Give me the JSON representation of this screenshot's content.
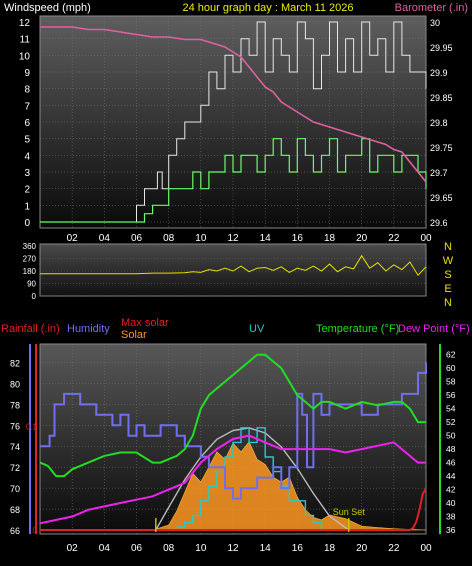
{
  "header": {
    "left_title": "Windspeed (mph)",
    "center_title": "24 hour graph day : March 11 2026",
    "right_title": "Barometer (.in)"
  },
  "colors": {
    "bg": "#000000",
    "plot_grad_top": "#5a5a5a",
    "plot_grad_bottom": "#0c0c0c",
    "wind_gust": "#e8e8e8",
    "wind_avg": "#66ff66",
    "barometer": "#e060a0",
    "direction": "#e8e000",
    "temperature": "#22dd22",
    "dew_point": "#ee22ee",
    "humidity": "#7070ee",
    "uv": "#22cccc",
    "solar": "#ff9922",
    "max_solar": "#bbbbbb",
    "rainfall": "#dd2222",
    "sunset": "#cccc00",
    "axis_text": "#ffffff"
  },
  "chart_data": [
    {
      "id": "wind",
      "type": "line",
      "title": "24 hour graph day : March 11 2026",
      "ylabel": "Windspeed (mph)",
      "y2label": "Barometer (.in)",
      "x_ticks": [
        "02",
        "04",
        "06",
        "08",
        "10",
        "12",
        "14",
        "16",
        "18",
        "20",
        "22",
        "00"
      ],
      "x_range": [
        0,
        24
      ],
      "ylim": [
        0,
        12
      ],
      "y_ticks": [
        0,
        1,
        2,
        3,
        4,
        5,
        6,
        7,
        8,
        9,
        10,
        11,
        12
      ],
      "y2lim": [
        29.6,
        30.0
      ],
      "y2_ticks": [
        "29.6",
        "29.65",
        "29.7",
        "29.75",
        "29.8",
        "29.85",
        "29.9",
        "29.95",
        "30"
      ],
      "series": [
        {
          "name": "Windspeed",
          "key": "gust",
          "x": [
            0,
            5.0,
            5.5,
            6.0,
            6.5,
            7.0,
            7.3,
            7.6,
            8.0,
            8.5,
            9.0,
            9.5,
            10.0,
            10.5,
            11.0,
            11.5,
            12.0,
            12.5,
            13.0,
            13.5,
            14.0,
            14.5,
            15.0,
            15.5,
            16.0,
            16.5,
            17.0,
            17.5,
            18.0,
            18.5,
            19.0,
            19.5,
            20.0,
            20.5,
            21.0,
            21.5,
            22.0,
            22.5,
            23.0,
            23.5,
            24.0
          ],
          "values": [
            0,
            0,
            0,
            1,
            2,
            2,
            3,
            2,
            4,
            5,
            6,
            6,
            7,
            9,
            8,
            10,
            9,
            11,
            10,
            12,
            9,
            11,
            10,
            9,
            12,
            11,
            8,
            10,
            12,
            9,
            11,
            9,
            12,
            10,
            11,
            9,
            12,
            10,
            9,
            9,
            8
          ]
        },
        {
          "name": "Windspeed Avg",
          "key": "avg",
          "x": [
            0,
            5.0,
            6.0,
            6.5,
            7.0,
            7.5,
            8.0,
            8.5,
            9.0,
            9.5,
            10.0,
            10.5,
            11.0,
            11.5,
            12.0,
            12.5,
            13.0,
            13.5,
            14.0,
            14.5,
            15.0,
            15.5,
            16.0,
            16.5,
            17.0,
            17.5,
            18.0,
            18.5,
            19.0,
            19.5,
            20.0,
            20.5,
            21.0,
            21.5,
            22.0,
            22.5,
            23.0,
            23.5,
            24.0
          ],
          "values": [
            0,
            0,
            0,
            0.5,
            1,
            1,
            2,
            2,
            2,
            3,
            2,
            3,
            3,
            4,
            3,
            4,
            4,
            3,
            4,
            5,
            4,
            3,
            5,
            4,
            3,
            4,
            5,
            3,
            4,
            4,
            5,
            3,
            4,
            4,
            3,
            4,
            4,
            3,
            2
          ]
        },
        {
          "name": "Barometer",
          "key": "baro",
          "axis": "y2",
          "x": [
            0,
            1,
            2,
            3,
            4,
            5,
            6,
            7,
            8,
            9,
            10,
            10.5,
            11,
            11.5,
            12,
            12.5,
            13,
            13.5,
            14,
            14.5,
            15,
            15.5,
            16,
            16.5,
            17,
            17.5,
            18,
            18.5,
            19,
            19.5,
            20,
            20.5,
            21,
            21.5,
            22,
            22.5,
            23,
            23.5,
            24
          ],
          "values": [
            29.99,
            29.99,
            29.99,
            29.985,
            29.985,
            29.98,
            29.975,
            29.97,
            29.97,
            29.965,
            29.965,
            29.96,
            29.955,
            29.95,
            29.94,
            29.93,
            29.91,
            29.89,
            29.87,
            29.86,
            29.84,
            29.83,
            29.82,
            29.81,
            29.8,
            29.795,
            29.79,
            29.785,
            29.78,
            29.775,
            29.77,
            29.765,
            29.76,
            29.755,
            29.745,
            29.74,
            29.72,
            29.7,
            29.68
          ]
        }
      ]
    },
    {
      "id": "direction",
      "type": "line",
      "ylim": [
        0,
        360
      ],
      "y_ticks": [
        0,
        90,
        180,
        270,
        360
      ],
      "compass_labels": [
        "N",
        "W",
        "S",
        "E",
        "N"
      ],
      "series": [
        {
          "name": "Wind Direction",
          "key": "dir",
          "x": [
            0,
            2,
            4,
            6,
            7,
            8,
            9,
            9.5,
            10,
            10.5,
            11,
            11.5,
            12,
            12.5,
            13,
            13.5,
            14,
            14.5,
            15,
            15.5,
            16,
            16.5,
            17,
            17.5,
            18,
            18.5,
            19,
            19.5,
            20,
            20.5,
            21,
            21.5,
            22,
            22.5,
            23,
            23.5,
            24
          ],
          "values": [
            160,
            160,
            160,
            160,
            165,
            165,
            168,
            175,
            170,
            190,
            180,
            200,
            180,
            215,
            175,
            200,
            205,
            185,
            210,
            170,
            200,
            185,
            215,
            180,
            230,
            175,
            210,
            195,
            290,
            200,
            240,
            180,
            225,
            190,
            245,
            150,
            210
          ]
        }
      ]
    },
    {
      "id": "weather",
      "type": "line",
      "x_ticks": [
        "02",
        "04",
        "06",
        "08",
        "10",
        "12",
        "14",
        "16",
        "18",
        "20",
        "22",
        "00"
      ],
      "x_range": [
        0,
        24
      ],
      "humidity_axis": {
        "label": "Humidity",
        "ticks": [
          66,
          68,
          70,
          72,
          74,
          76,
          78,
          80,
          82
        ],
        "lim": [
          66,
          83
        ]
      },
      "temp_axis": {
        "label": "Temperature (°F)",
        "ticks": [
          36,
          38,
          40,
          42,
          44,
          46,
          48,
          50,
          52,
          54,
          56,
          58,
          60,
          62
        ],
        "lim": [
          36,
          63
        ]
      },
      "rain_axis": {
        "label": "Rainfall (.in)",
        "ticks": [
          "0",
          "0.1"
        ],
        "lim": [
          0,
          0.18
        ]
      },
      "labels": {
        "rainfall": "Rainfall (.in)",
        "humidity": "Humidity",
        "max_solar": "Max solar",
        "solar": "Solar",
        "uv": "UV",
        "temperature": "Temperature (°F)",
        "dew_point": "Dew Point (°F)",
        "sunset": "Sun Set"
      },
      "series": [
        {
          "name": "Temperature (°F)",
          "key": "temp",
          "x": [
            0,
            0.5,
            1,
            1.5,
            2,
            3,
            4,
            5,
            6,
            7,
            7.5,
            8,
            8.5,
            9,
            9.5,
            10,
            10.5,
            11,
            11.5,
            12,
            12.5,
            13,
            13.5,
            14,
            14.5,
            15,
            15.5,
            16,
            16.5,
            17,
            17.5,
            18,
            19,
            20,
            21,
            22,
            22.5,
            23,
            23.5,
            24
          ],
          "values": [
            46,
            45.5,
            44,
            44,
            45,
            46,
            47,
            47.5,
            47.5,
            46,
            46,
            46.5,
            47,
            48,
            50,
            54,
            56,
            57,
            58,
            59,
            60,
            61,
            62,
            62,
            61,
            60,
            58,
            56,
            55,
            54,
            55,
            55,
            54,
            55,
            54.5,
            55,
            55,
            54,
            52,
            52
          ]
        },
        {
          "name": "Dew Point (°F)",
          "key": "dew",
          "x": [
            0,
            1,
            2,
            3,
            4,
            5,
            6,
            7,
            8,
            9,
            10,
            11,
            12,
            13,
            14,
            15,
            16,
            17,
            18,
            19,
            20,
            21,
            22,
            23,
            23.5,
            24
          ],
          "values": [
            37,
            37.5,
            38,
            39,
            39.5,
            40,
            40.5,
            41,
            42,
            43,
            46,
            48,
            49.5,
            50,
            49,
            48,
            48,
            48,
            48,
            47.5,
            48,
            48.5,
            49,
            47,
            46,
            46
          ]
        },
        {
          "name": "Humidity",
          "key": "hum",
          "x": [
            0,
            0.3,
            0.6,
            0.9,
            1.2,
            1.5,
            2.0,
            2.5,
            3.0,
            3.5,
            4.0,
            4.5,
            5.0,
            5.5,
            6.0,
            6.5,
            7.0,
            7.5,
            8.0,
            8.5,
            9.0,
            9.5,
            10.0,
            10.5,
            11.0,
            11.5,
            12.0,
            12.5,
            13.0,
            13.5,
            14.0,
            14.5,
            15.0,
            15.5,
            16.0,
            16.3,
            16.6,
            17.0,
            17.5,
            18.0,
            19.0,
            20.0,
            21.0,
            22.0,
            22.5,
            23.0,
            23.5,
            24.0
          ],
          "values": [
            74,
            74,
            75,
            78,
            78,
            79,
            79,
            78,
            78,
            77,
            77,
            76,
            77,
            75,
            76,
            75,
            75,
            76,
            76,
            75,
            74,
            74,
            73,
            72,
            72,
            70,
            69,
            70,
            70,
            71,
            71,
            72,
            70,
            72,
            79,
            77,
            72,
            79,
            77,
            78,
            78,
            77,
            78,
            78,
            79,
            79,
            81,
            82
          ]
        },
        {
          "name": "UV",
          "key": "uv",
          "x": [
            8.5,
            9,
            9.5,
            10,
            10.5,
            11,
            11.5,
            12,
            12.5,
            13,
            13.5,
            14,
            14.5,
            15,
            15.5,
            16,
            16.5,
            17,
            17.5
          ],
          "values": [
            0.2,
            0.5,
            1,
            2,
            3,
            4,
            5,
            6,
            7,
            6,
            7,
            5,
            4,
            3,
            2,
            2,
            1,
            0.5,
            0
          ],
          "lim": [
            0,
            10
          ]
        },
        {
          "name": "Solar",
          "key": "solar",
          "x": [
            7,
            8,
            8.5,
            9,
            9.5,
            10,
            10.5,
            11,
            11.5,
            12,
            12.5,
            13,
            13.5,
            14,
            14.5,
            15,
            15.5,
            16,
            16.5,
            17,
            17.5,
            18,
            19,
            20,
            21,
            22,
            23,
            24
          ],
          "values": [
            0,
            40,
            150,
            300,
            450,
            380,
            500,
            620,
            560,
            690,
            620,
            700,
            560,
            520,
            420,
            380,
            420,
            260,
            160,
            100,
            80,
            120,
            90,
            30,
            20,
            10,
            5,
            0
          ],
          "lim": [
            0,
            1000
          ]
        },
        {
          "name": "Max solar",
          "key": "maxsolar",
          "x": [
            7.2,
            8,
            9,
            10,
            11,
            12,
            13,
            14,
            15,
            16,
            17,
            18,
            19.2
          ],
          "values": [
            0,
            180,
            400,
            580,
            720,
            790,
            810,
            770,
            660,
            490,
            290,
            110,
            0
          ],
          "lim": [
            0,
            1000
          ]
        },
        {
          "name": "Rainfall (.in)",
          "key": "rain",
          "x": [
            0,
            23,
            23.2,
            23.4,
            23.6,
            23.8,
            24
          ],
          "values": [
            0,
            0,
            0.002,
            0.008,
            0.02,
            0.035,
            0.04
          ]
        }
      ],
      "annotations": [
        {
          "text": "Sun Set",
          "x": 19.2
        }
      ]
    }
  ]
}
